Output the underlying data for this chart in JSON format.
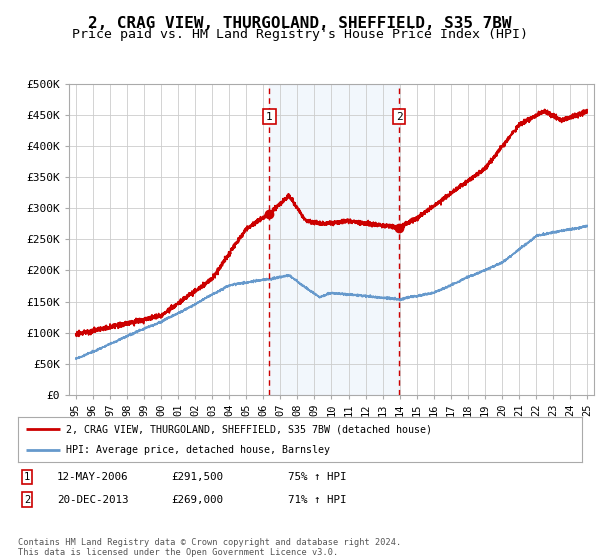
{
  "title": "2, CRAG VIEW, THURGOLAND, SHEFFIELD, S35 7BW",
  "subtitle": "Price paid vs. HM Land Registry's House Price Index (HPI)",
  "title_fontsize": 11.5,
  "subtitle_fontsize": 9.5,
  "background_color": "#ffffff",
  "plot_bg_color": "#ffffff",
  "grid_color": "#cccccc",
  "hpi_line_color": "#6699cc",
  "price_line_color": "#cc0000",
  "transaction1": {
    "date_x": 2006.36,
    "price": 291500,
    "label": "1"
  },
  "transaction2": {
    "date_x": 2013.97,
    "price": 269000,
    "label": "2"
  },
  "highlight_color": "#ddeeff",
  "dashed_line_color": "#cc0000",
  "ylim": [
    0,
    500000
  ],
  "xlim_start": 1994.6,
  "xlim_end": 2025.4,
  "ytick_labels": [
    "£0",
    "£50K",
    "£100K",
    "£150K",
    "£200K",
    "£250K",
    "£300K",
    "£350K",
    "£400K",
    "£450K",
    "£500K"
  ],
  "ytick_values": [
    0,
    50000,
    100000,
    150000,
    200000,
    250000,
    300000,
    350000,
    400000,
    450000,
    500000
  ],
  "legend_label1": "2, CRAG VIEW, THURGOLAND, SHEFFIELD, S35 7BW (detached house)",
  "legend_label2": "HPI: Average price, detached house, Barnsley",
  "table_row1": [
    "1",
    "12-MAY-2006",
    "£291,500",
    "75% ↑ HPI"
  ],
  "table_row2": [
    "2",
    "20-DEC-2013",
    "£269,000",
    "71% ↑ HPI"
  ],
  "footnote": "Contains HM Land Registry data © Crown copyright and database right 2024.\nThis data is licensed under the Open Government Licence v3.0.",
  "xtick_years": [
    1995,
    1996,
    1997,
    1998,
    1999,
    2000,
    2001,
    2002,
    2003,
    2004,
    2005,
    2006,
    2007,
    2008,
    2009,
    2010,
    2011,
    2012,
    2013,
    2014,
    2015,
    2016,
    2017,
    2018,
    2019,
    2020,
    2021,
    2022,
    2023,
    2024,
    2025
  ]
}
